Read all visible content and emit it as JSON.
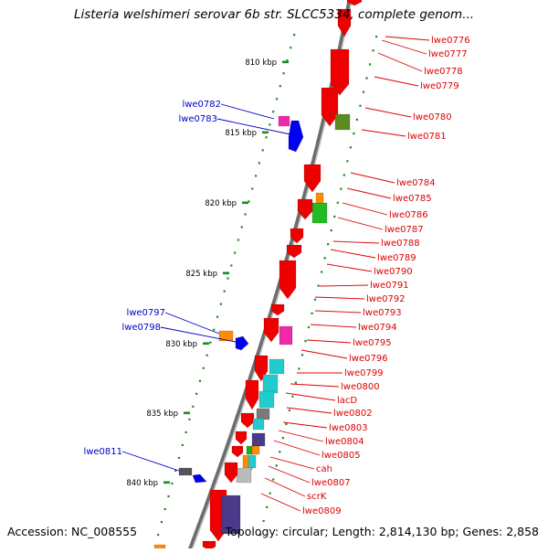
{
  "title": "Listeria welshimeri serovar 6b str. SLCC5334, complete genom...",
  "footer": {
    "accession": "Accession: NC_008555",
    "summary": "Topology: circular; Length: 2,814,130 bp; Genes: 2,858"
  },
  "colors": {
    "backbone": "#8a8a8a",
    "tick": "#1e8c1e",
    "forward_label": "#0000cc",
    "reverse_label": "#dd0000"
  },
  "ruler": [
    {
      "label": "810 kbp"
    },
    {
      "label": "815 kbp"
    },
    {
      "label": "820 kbp"
    },
    {
      "label": "825 kbp"
    },
    {
      "label": "830 kbp"
    },
    {
      "label": "835 kbp"
    },
    {
      "label": "840 kbp"
    }
  ],
  "forward_genes": [
    {
      "name": "lwe0782",
      "color": "#ee2aa8"
    },
    {
      "name": "lwe0783",
      "color": "#0000ee"
    },
    {
      "name": "lwe0797",
      "color": "#ff8c00"
    },
    {
      "name": "lwe0798",
      "color": "#0000ee"
    },
    {
      "name": "lwe0811",
      "color": "#0000ee"
    }
  ],
  "reverse_genes": [
    {
      "name": "lwe0776",
      "color": "#ee0000"
    },
    {
      "name": "lwe0777",
      "color": "#ee0000"
    },
    {
      "name": "lwe0778",
      "color": "#ee0000"
    },
    {
      "name": "lwe0779",
      "color": "#ee0000"
    },
    {
      "name": "lwe0780",
      "color": "#5f8a1e"
    },
    {
      "name": "lwe0781",
      "color": "#ee0000"
    },
    {
      "name": "lwe0784",
      "color": "#ee0000"
    },
    {
      "name": "lwe0785",
      "color": "#ff8c00"
    },
    {
      "name": "lwe0786",
      "color": "#22bb22"
    },
    {
      "name": "lwe0787",
      "color": "#ee0000"
    },
    {
      "name": "lwe0788",
      "color": "#ee0000"
    },
    {
      "name": "lwe0789",
      "color": "#ee0000"
    },
    {
      "name": "lwe0790",
      "color": "#ee0000"
    },
    {
      "name": "lwe0791",
      "color": "#ee0000"
    },
    {
      "name": "lwe0792",
      "color": "#ee0000"
    },
    {
      "name": "lwe0793",
      "color": "#ee0000"
    },
    {
      "name": "lwe0794",
      "color": "#ee0000"
    },
    {
      "name": "lwe0795",
      "color": "#ee2aa8"
    },
    {
      "name": "lwe0796",
      "color": "#ee0000"
    },
    {
      "name": "lwe0799",
      "color": "#22cccc"
    },
    {
      "name": "lwe0800",
      "color": "#22cccc"
    },
    {
      "name": "lacD",
      "color": "#22cccc"
    },
    {
      "name": "lwe0802",
      "color": "#7a7a7a"
    },
    {
      "name": "lwe0803",
      "color": "#ee0000"
    },
    {
      "name": "lwe0804",
      "color": "#4b3a8a"
    },
    {
      "name": "lwe0805",
      "color": "#ff8c00"
    },
    {
      "name": "cah",
      "color": "#ee0000"
    },
    {
      "name": "lwe0807",
      "color": "#bbbbbb"
    },
    {
      "name": "scrK",
      "color": "#ee0000"
    },
    {
      "name": "lwe0809",
      "color": "#4b3a8a"
    }
  ]
}
